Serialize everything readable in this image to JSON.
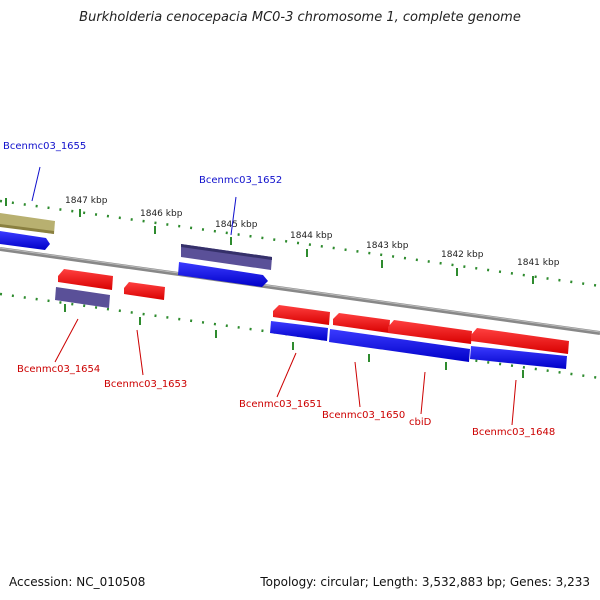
{
  "title": "Burkholderia cenocepacia MC0-3 chromosome 1, complete genome",
  "footer": {
    "accession": "Accession: NC_010508",
    "topology": "Topology: circular; Length: 3,532,883 bp; Genes: 3,233"
  },
  "colors": {
    "tick": "#2e8b2e",
    "backbone": "#888888",
    "gene_forward": "#1010ee",
    "gene_reverse": "#ee1010",
    "gene_pseudo": "#b8b070",
    "gene_other": "#5a5098",
    "label_blue": "#1010cc",
    "label_red": "#cc0000"
  },
  "scale_labels": [
    "1847 kbp",
    "1846 kbp",
    "1845 kbp",
    "1844 kbp",
    "1843 kbp",
    "1842 kbp",
    "1841 kbp"
  ],
  "gene_labels": [
    {
      "text": "Bcenmc03_1655",
      "color": "blue"
    },
    {
      "text": "Bcenmc03_1652",
      "color": "blue"
    },
    {
      "text": "Bcenmc03_1654",
      "color": "red"
    },
    {
      "text": "Bcenmc03_1653",
      "color": "red"
    },
    {
      "text": "Bcenmc03_1651",
      "color": "red"
    },
    {
      "text": "Bcenmc03_1650",
      "color": "red"
    },
    {
      "text": "cbiD",
      "color": "red"
    },
    {
      "text": "Bcenmc03_1648",
      "color": "red"
    }
  ]
}
